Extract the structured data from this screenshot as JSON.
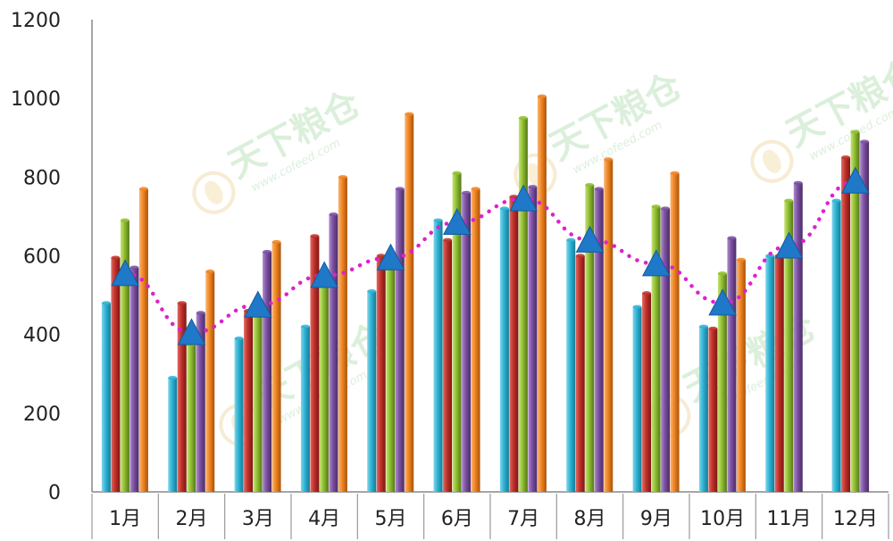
{
  "chart_data": {
    "type": "bar",
    "title": "",
    "xlabel": "",
    "ylabel": "",
    "ylim": [
      0,
      1200
    ],
    "yticks": [
      0,
      200,
      400,
      600,
      800,
      1000,
      1200
    ],
    "grid": false,
    "legend": "none",
    "categories": [
      "1月",
      "2月",
      "3月",
      "4月",
      "5月",
      "6月",
      "7月",
      "8月",
      "9月",
      "10月",
      "11月",
      "12月"
    ],
    "series": [
      {
        "color": "#2eb1d3",
        "values": [
          480,
          290,
          390,
          420,
          510,
          690,
          720,
          640,
          470,
          420,
          600,
          740
        ]
      },
      {
        "color": "#c0302a",
        "values": [
          595,
          480,
          460,
          650,
          600,
          640,
          750,
          600,
          505,
          415,
          600,
          850
        ]
      },
      {
        "color": "#8ebd2f",
        "values": [
          690,
          375,
          450,
          525,
          570,
          810,
          950,
          780,
          725,
          555,
          740,
          915
        ]
      },
      {
        "color": "#7a4fa0",
        "values": [
          570,
          455,
          610,
          705,
          770,
          760,
          775,
          770,
          720,
          645,
          785,
          890
        ]
      },
      {
        "color": "#f08320",
        "values": [
          770,
          560,
          635,
          800,
          960,
          770,
          1005,
          845,
          810,
          590,
          null,
          null
        ]
      }
    ],
    "trend": {
      "type": "line",
      "style": "dotted",
      "marker": "triangle",
      "line_color": "#dd22cc",
      "marker_color": "#1f78c8",
      "values": [
        555,
        405,
        475,
        550,
        595,
        685,
        745,
        640,
        580,
        480,
        625,
        790
      ]
    }
  },
  "watermark": {
    "brand": "天下粮仓",
    "site": "www.cofeed.com"
  }
}
